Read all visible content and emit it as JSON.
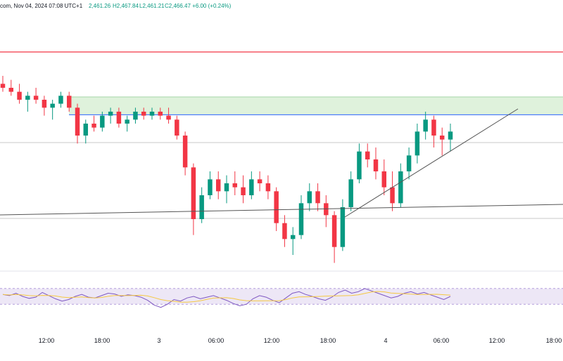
{
  "header": {
    "source_date": "com, Nov 04, 2024 07:08 UTC+1",
    "open": "2,461.26",
    "high": "H2,467.84",
    "low": "L2,461.21",
    "close_change": "C2,466.47 +6.00 (+0.24%)"
  },
  "colors": {
    "up": "#089981",
    "down": "#f23645",
    "resistance": "#f23645",
    "support": "#2962ff",
    "zone": "#dff2dc",
    "trendline": "#555555",
    "rsi": "#7e57c2",
    "rsi_ma": "#f5c842",
    "rsi_band": "#ede7f6"
  },
  "chart_data": {
    "type": "candlestick",
    "x_ticks": [
      "12:00",
      "18:00",
      "3",
      "06:00",
      "12:00",
      "18:00",
      "4",
      "06:00",
      "12:00",
      "18:00"
    ],
    "y_range_price": [
      2420,
      2480
    ],
    "candles_ohlc_approx": [
      [
        2466,
        2468,
        2464,
        2465
      ],
      [
        2465,
        2467,
        2463,
        2464
      ],
      [
        2464,
        2466,
        2461,
        2462
      ],
      [
        2462,
        2464,
        2459,
        2463
      ],
      [
        2463,
        2465,
        2461,
        2462
      ],
      [
        2462,
        2463,
        2458,
        2460
      ],
      [
        2460,
        2462,
        2457,
        2461
      ],
      [
        2461,
        2464,
        2460,
        2463
      ],
      [
        2463,
        2464,
        2459,
        2460
      ],
      [
        2460,
        2461,
        2451,
        2453
      ],
      [
        2453,
        2457,
        2451,
        2456
      ],
      [
        2456,
        2458,
        2454,
        2455
      ],
      [
        2455,
        2459,
        2454,
        2458
      ],
      [
        2458,
        2460,
        2456,
        2459
      ],
      [
        2459,
        2460,
        2455,
        2456
      ],
      [
        2456,
        2458,
        2454,
        2457
      ],
      [
        2457,
        2460,
        2456,
        2459
      ],
      [
        2459,
        2460,
        2457,
        2458
      ],
      [
        2458,
        2460,
        2457,
        2459
      ],
      [
        2459,
        2460,
        2457,
        2458
      ],
      [
        2458,
        2460,
        2456,
        2457
      ],
      [
        2457,
        2458,
        2452,
        2453
      ],
      [
        2453,
        2454,
        2443,
        2445
      ],
      [
        2445,
        2446,
        2428,
        2432
      ],
      [
        2432,
        2440,
        2431,
        2438
      ],
      [
        2438,
        2444,
        2437,
        2442
      ],
      [
        2442,
        2444,
        2437,
        2439
      ],
      [
        2439,
        2443,
        2436,
        2441
      ],
      [
        2441,
        2444,
        2438,
        2440
      ],
      [
        2440,
        2443,
        2436,
        2438
      ],
      [
        2438,
        2444,
        2437,
        2442
      ],
      [
        2442,
        2444,
        2439,
        2441
      ],
      [
        2441,
        2443,
        2437,
        2439
      ],
      [
        2439,
        2440,
        2429,
        2431
      ],
      [
        2431,
        2433,
        2425,
        2427
      ],
      [
        2427,
        2430,
        2423,
        2428
      ],
      [
        2428,
        2438,
        2427,
        2436
      ],
      [
        2436,
        2441,
        2434,
        2439
      ],
      [
        2439,
        2441,
        2434,
        2436
      ],
      [
        2436,
        2438,
        2430,
        2433
      ],
      [
        2433,
        2434,
        2421,
        2425
      ],
      [
        2425,
        2437,
        2424,
        2435
      ],
      [
        2435,
        2444,
        2434,
        2442
      ],
      [
        2442,
        2451,
        2441,
        2449
      ],
      [
        2449,
        2451,
        2445,
        2447
      ],
      [
        2447,
        2450,
        2442,
        2444
      ],
      [
        2444,
        2447,
        2438,
        2440
      ],
      [
        2440,
        2444,
        2434,
        2436
      ],
      [
        2436,
        2446,
        2435,
        2444
      ],
      [
        2444,
        2450,
        2442,
        2448
      ],
      [
        2448,
        2456,
        2446,
        2454
      ],
      [
        2454,
        2459,
        2452,
        2457
      ],
      [
        2457,
        2458,
        2450,
        2453
      ],
      [
        2453,
        2455,
        2448,
        2452
      ],
      [
        2452,
        2456,
        2449,
        2454
      ]
    ],
    "horizontal_levels": [
      {
        "name": "resistance",
        "price": 2474
      },
      {
        "name": "zone_top",
        "price": 2462
      },
      {
        "name": "zone_bottom",
        "price": 2460
      },
      {
        "name": "level",
        "price": 2451
      },
      {
        "name": "level",
        "price": 2429
      }
    ],
    "trendlines": [
      {
        "from": {
          "x_index": 0,
          "price": 2428
        },
        "to": {
          "x_index": 110,
          "price": 2433
        }
      },
      {
        "from": {
          "x_index": 66,
          "price": 2425
        },
        "to": {
          "x_index": 100,
          "price": 2460
        }
      }
    ],
    "rsi": {
      "upper_band": 70,
      "lower_band": 30,
      "values": [
        55,
        52,
        58,
        50,
        45,
        48,
        60,
        52,
        44,
        38,
        42,
        50,
        55,
        48,
        46,
        52,
        58,
        56,
        50,
        54,
        52,
        48,
        40,
        28,
        22,
        30,
        42,
        38,
        46,
        50,
        44,
        48,
        52,
        46,
        40,
        32,
        26,
        30,
        44,
        52,
        48,
        40,
        34,
        46,
        58,
        62,
        55,
        50,
        44,
        40,
        48,
        60,
        66,
        58,
        62,
        70,
        64,
        58,
        52,
        46,
        50,
        58,
        62,
        56,
        60,
        54,
        48,
        42,
        50
      ]
    }
  }
}
